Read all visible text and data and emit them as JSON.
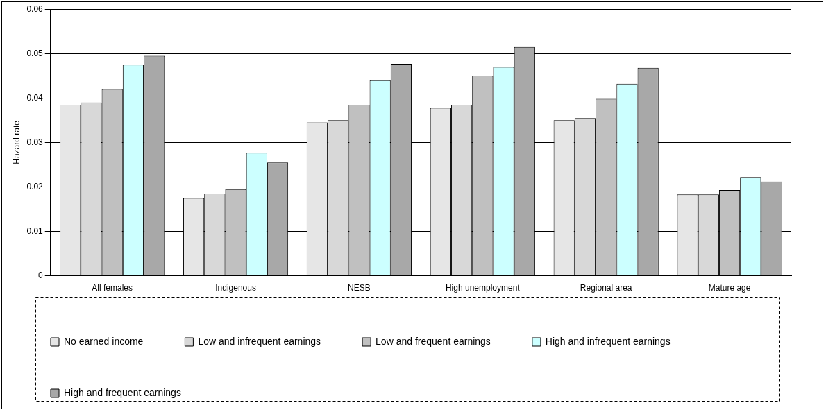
{
  "chart_data": {
    "type": "bar",
    "ylabel": "Hazard rate",
    "categories": [
      "All females",
      "Indigenous",
      "NESB",
      "High unemployment",
      "Regional area",
      "Mature age"
    ],
    "series": [
      {
        "name": "No earned income",
        "color": "#e6e6e6",
        "values": [
          0.0385,
          0.0175,
          0.0345,
          0.0378,
          0.035,
          0.0183
        ]
      },
      {
        "name": "Low and infrequent earnings",
        "color": "#d8d8d8",
        "values": [
          0.039,
          0.0185,
          0.035,
          0.0385,
          0.0355,
          0.0183
        ]
      },
      {
        "name": "Low and frequent earnings",
        "color": "#c0c0c0",
        "values": [
          0.042,
          0.0195,
          0.0385,
          0.045,
          0.0398,
          0.0193
        ]
      },
      {
        "name": "High and infrequent earnings",
        "color": "#ccffff",
        "values": [
          0.0475,
          0.0277,
          0.044,
          0.047,
          0.0432,
          0.0222
        ]
      },
      {
        "name": "High and frequent earnings",
        "color": "#a8a8a8",
        "values": [
          0.0495,
          0.0255,
          0.0477,
          0.0515,
          0.0468,
          0.0212
        ]
      }
    ],
    "ylim": [
      0,
      0.06
    ],
    "yticks": [
      0,
      0.01,
      0.02,
      0.03,
      0.04,
      0.05,
      0.06
    ],
    "grid": "y",
    "legend": "bottom"
  }
}
